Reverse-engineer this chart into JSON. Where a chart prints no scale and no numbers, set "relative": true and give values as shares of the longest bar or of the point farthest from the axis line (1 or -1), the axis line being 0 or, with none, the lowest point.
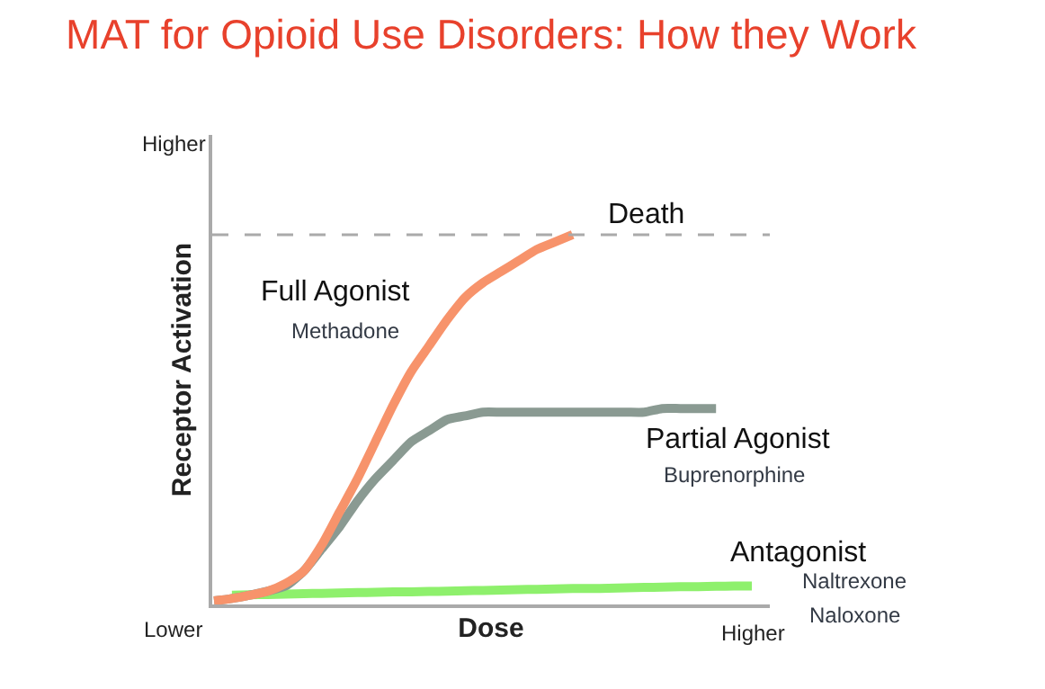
{
  "chart_data": {
    "type": "line",
    "title": "MAT for Opioid Use Disorders: How they Work",
    "xlabel": "Dose",
    "ylabel": "Receptor Activation",
    "relative": true,
    "legend": false,
    "marker": "none",
    "line_style": "solid",
    "categories": [
      null,
      null,
      null,
      null,
      null,
      null,
      null,
      null,
      null,
      null,
      null,
      null,
      null,
      null,
      null,
      null,
      null,
      null,
      null,
      null,
      null,
      null,
      null,
      null,
      null,
      null,
      null,
      null,
      null,
      null,
      null
    ],
    "series": [
      {
        "name": "Antagonist",
        "color": "#8ef06c",
        "values": [
          null,
          0.025,
          0.026,
          0.027,
          0.028,
          0.029,
          0.03,
          0.031,
          0.032,
          0.033,
          0.034,
          0.034,
          0.035,
          0.036,
          0.037,
          0.038,
          0.039,
          0.04,
          0.041,
          0.042,
          0.043,
          0.043,
          0.044,
          0.045,
          0.046,
          0.047,
          0.048,
          0.048,
          0.049,
          0.05,
          0.05
        ]
      },
      {
        "name": "Partial Agonist",
        "color": "#8a9a92",
        "values": [
          0.01,
          0.016,
          0.025,
          0.036,
          0.05,
          0.09,
          0.15,
          0.21,
          0.28,
          0.34,
          0.39,
          0.44,
          0.47,
          0.5,
          0.51,
          0.52,
          0.52,
          0.52,
          0.52,
          0.52,
          0.52,
          0.52,
          0.52,
          0.52,
          0.52,
          0.53,
          0.53,
          0.53,
          0.53,
          null,
          null
        ]
      },
      {
        "name": "Full Agonist",
        "color": "#f7936b",
        "values": [
          0.01,
          0.016,
          0.025,
          0.036,
          0.057,
          0.09,
          0.16,
          0.25,
          0.34,
          0.44,
          0.54,
          0.63,
          0.7,
          0.77,
          0.83,
          0.87,
          0.9,
          0.93,
          0.96,
          0.98,
          1,
          null,
          null,
          null,
          null,
          null,
          null,
          null,
          null,
          null,
          null
        ]
      }
    ],
    "ref_lines": [
      {
        "axis": "y",
        "value": 1,
        "label": "Death",
        "color": "#aaaaaa",
        "line_style": "dashed"
      }
    ],
    "annotations": [
      "Higher",
      "Lower",
      "Higher",
      "Methadone",
      "Buprenorphine",
      "Naltrexone",
      "Naloxone"
    ]
  }
}
